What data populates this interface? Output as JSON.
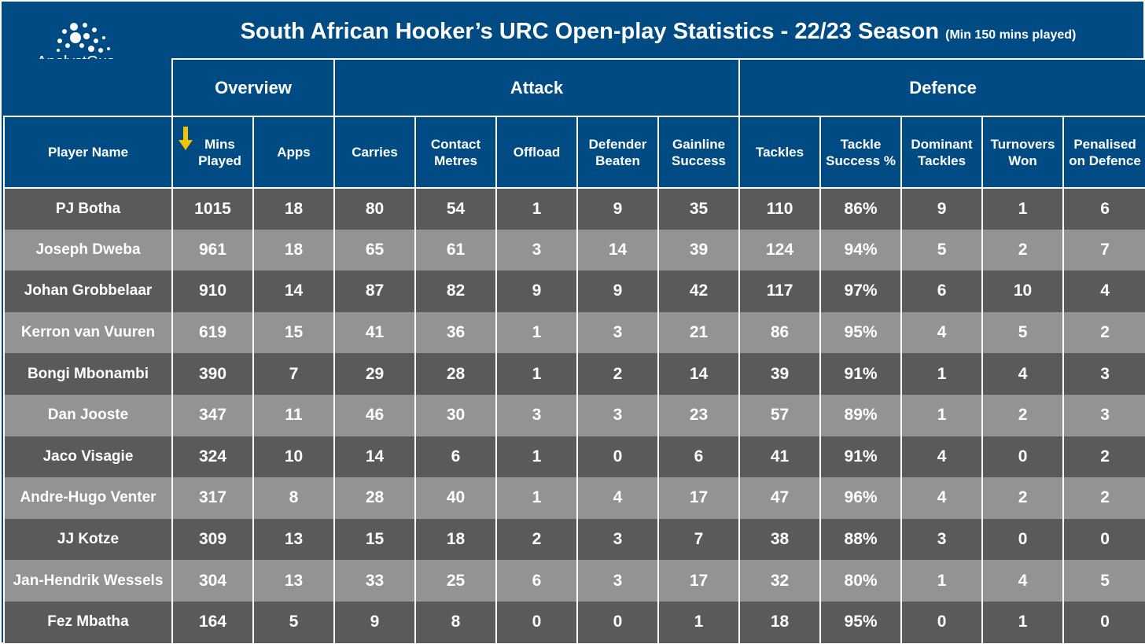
{
  "title": "South African Hooker’s URC Open-play Statistics - 22/23 Season",
  "subtitle": "(Min 150 mins played)",
  "logo_text": "AnalystGus",
  "colors": {
    "header_bg": "#014b85",
    "row_dark": "#5a5a5a",
    "row_light": "#939393",
    "sort_arrow": "#f3c300",
    "text": "#ffffff"
  },
  "chart_data": {
    "type": "table",
    "sorted_by": "Mins Played",
    "sort_direction": "descending",
    "groups": [
      {
        "label": "Overview",
        "span": 2
      },
      {
        "label": "Attack",
        "span": 5
      },
      {
        "label": "Defence",
        "span": 5
      }
    ],
    "columns": [
      "Player Name",
      "Mins Played",
      "Apps",
      "Carries",
      "Contact Metres",
      "Offload",
      "Defender Beaten",
      "Gainline Success",
      "Tackles",
      "Tackle Success %",
      "Dominant Tackles",
      "Turnovers Won",
      "Penalised on Defence"
    ],
    "rows": [
      [
        "PJ Botha",
        "1015",
        "18",
        "80",
        "54",
        "1",
        "9",
        "35",
        "110",
        "86%",
        "9",
        "1",
        "6"
      ],
      [
        "Joseph Dweba",
        "961",
        "18",
        "65",
        "61",
        "3",
        "14",
        "39",
        "124",
        "94%",
        "5",
        "2",
        "7"
      ],
      [
        "Johan Grobbelaar",
        "910",
        "14",
        "87",
        "82",
        "9",
        "9",
        "42",
        "117",
        "97%",
        "6",
        "10",
        "4"
      ],
      [
        "Kerron van Vuuren",
        "619",
        "15",
        "41",
        "36",
        "1",
        "3",
        "21",
        "86",
        "95%",
        "4",
        "5",
        "2"
      ],
      [
        "Bongi Mbonambi",
        "390",
        "7",
        "29",
        "28",
        "1",
        "2",
        "14",
        "39",
        "91%",
        "1",
        "4",
        "3"
      ],
      [
        "Dan Jooste",
        "347",
        "11",
        "46",
        "30",
        "3",
        "3",
        "23",
        "57",
        "89%",
        "1",
        "2",
        "3"
      ],
      [
        "Jaco Visagie",
        "324",
        "10",
        "14",
        "6",
        "1",
        "0",
        "6",
        "41",
        "91%",
        "4",
        "0",
        "2"
      ],
      [
        "Andre-Hugo Venter",
        "317",
        "8",
        "28",
        "40",
        "1",
        "4",
        "17",
        "47",
        "96%",
        "4",
        "2",
        "2"
      ],
      [
        "JJ Kotze",
        "309",
        "13",
        "15",
        "18",
        "2",
        "3",
        "7",
        "38",
        "88%",
        "3",
        "0",
        "0"
      ],
      [
        "Jan-Hendrik Wessels",
        "304",
        "13",
        "33",
        "25",
        "6",
        "3",
        "17",
        "32",
        "80%",
        "1",
        "4",
        "5"
      ],
      [
        "Fez Mbatha",
        "164",
        "5",
        "9",
        "8",
        "0",
        "0",
        "1",
        "18",
        "95%",
        "0",
        "1",
        "0"
      ]
    ]
  }
}
